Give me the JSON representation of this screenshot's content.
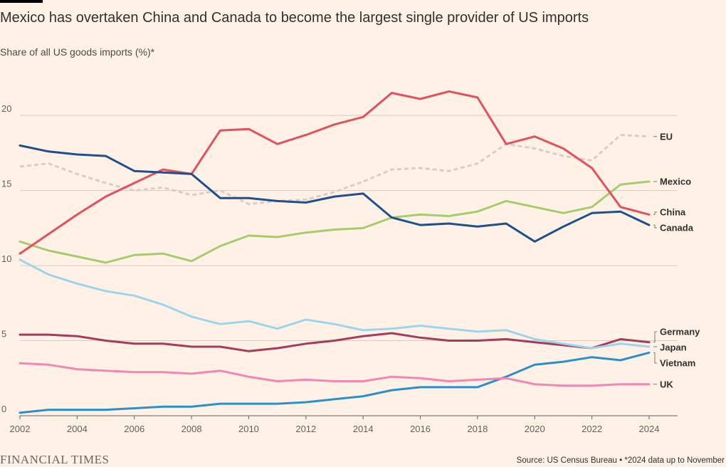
{
  "header": {
    "title": "Mexico has overtaken China and Canada to become the largest single provider of US imports",
    "subtitle": "Share of all US goods imports (%)*"
  },
  "footer": {
    "logo": "FINANCIAL TIMES",
    "source": "Source: US Census Bureau • *2024 data up to November"
  },
  "chart_data": {
    "type": "line",
    "title": "Mexico has overtaken China and Canada to become the largest single provider of US imports",
    "ylabel": "Share of all US goods imports (%)*",
    "ylim": [
      0,
      22
    ],
    "yticks": [
      0,
      5,
      10,
      15,
      20
    ],
    "xlim": [
      2002,
      2024
    ],
    "xticks": [
      2002,
      2004,
      2006,
      2008,
      2010,
      2012,
      2014,
      2016,
      2018,
      2020,
      2022,
      2024
    ],
    "grid": "horizontal",
    "x": [
      2002,
      2003,
      2004,
      2005,
      2006,
      2007,
      2008,
      2009,
      2010,
      2011,
      2012,
      2013,
      2014,
      2015,
      2016,
      2017,
      2018,
      2019,
      2020,
      2021,
      2022,
      2023,
      2024
    ],
    "series": [
      {
        "name": "EU",
        "color": "#d9cdc6",
        "dashed": true,
        "values": [
          16.6,
          16.8,
          16.1,
          15.5,
          15.0,
          15.2,
          14.7,
          15.0,
          14.1,
          14.3,
          14.4,
          14.9,
          15.6,
          16.4,
          16.5,
          16.3,
          16.8,
          18.1,
          17.8,
          17.3,
          17.0,
          18.7,
          18.6
        ]
      },
      {
        "name": "Mexico",
        "color": "#a6cc6d",
        "dashed": false,
        "values": [
          11.6,
          11.0,
          10.6,
          10.2,
          10.7,
          10.8,
          10.3,
          11.3,
          12.0,
          11.9,
          12.2,
          12.4,
          12.5,
          13.2,
          13.4,
          13.3,
          13.6,
          14.3,
          13.9,
          13.5,
          13.9,
          15.4,
          15.6
        ]
      },
      {
        "name": "China",
        "color": "#e3505e",
        "dashed": false,
        "values": [
          10.8,
          12.1,
          13.4,
          14.6,
          15.5,
          16.4,
          16.1,
          19.0,
          19.1,
          18.1,
          18.7,
          19.4,
          19.9,
          21.5,
          21.1,
          21.6,
          21.2,
          18.1,
          18.6,
          17.8,
          16.5,
          13.9,
          13.4
        ]
      },
      {
        "name": "Canada",
        "color": "#1f4f8c",
        "dashed": false,
        "values": [
          18.0,
          17.6,
          17.4,
          17.3,
          16.3,
          16.2,
          16.1,
          14.5,
          14.5,
          14.3,
          14.2,
          14.6,
          14.8,
          13.2,
          12.7,
          12.8,
          12.6,
          12.8,
          11.6,
          12.6,
          13.5,
          13.6,
          12.7
        ]
      },
      {
        "name": "Germany",
        "color": "#a43c5c",
        "dashed": false,
        "values": [
          5.4,
          5.4,
          5.3,
          5.0,
          4.8,
          4.8,
          4.6,
          4.6,
          4.3,
          4.5,
          4.8,
          5.0,
          5.3,
          5.5,
          5.2,
          5.0,
          5.0,
          5.1,
          4.9,
          4.7,
          4.5,
          5.1,
          4.9
        ]
      },
      {
        "name": "Japan",
        "color": "#9ed4eb",
        "dashed": false,
        "values": [
          10.4,
          9.4,
          8.8,
          8.3,
          8.0,
          7.4,
          6.6,
          6.1,
          6.3,
          5.8,
          6.4,
          6.1,
          5.7,
          5.8,
          6.0,
          5.8,
          5.6,
          5.7,
          5.1,
          4.8,
          4.5,
          4.8,
          4.6
        ]
      },
      {
        "name": "Vietnam",
        "color": "#2b8fcb",
        "dashed": false,
        "values": [
          0.2,
          0.4,
          0.4,
          0.4,
          0.5,
          0.6,
          0.6,
          0.8,
          0.8,
          0.8,
          0.9,
          1.1,
          1.3,
          1.7,
          1.9,
          1.9,
          1.9,
          2.6,
          3.4,
          3.6,
          3.9,
          3.7,
          4.2
        ]
      },
      {
        "name": "UK",
        "color": "#f287b4",
        "dashed": false,
        "values": [
          3.5,
          3.4,
          3.1,
          3.0,
          2.9,
          2.9,
          2.8,
          3.0,
          2.6,
          2.3,
          2.4,
          2.3,
          2.3,
          2.6,
          2.5,
          2.3,
          2.4,
          2.5,
          2.1,
          2.0,
          2.0,
          2.1,
          2.1
        ]
      }
    ]
  }
}
